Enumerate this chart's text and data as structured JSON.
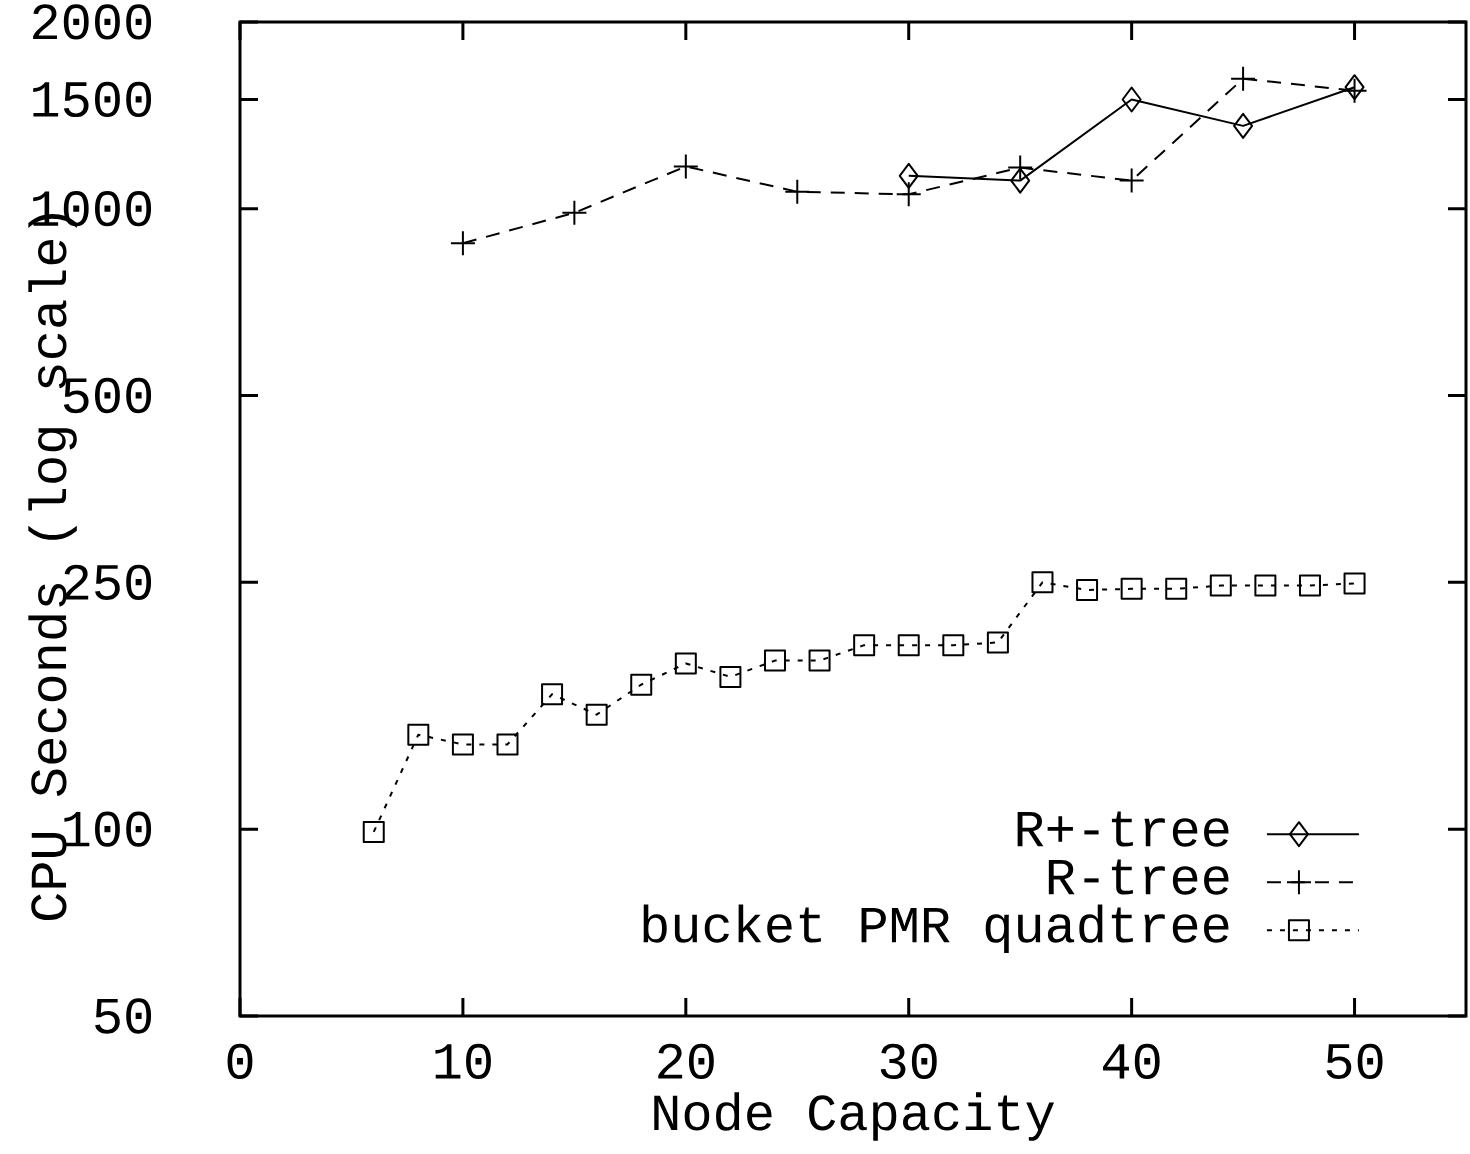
{
  "chart_data": {
    "type": "line",
    "xlabel": "Node Capacity",
    "ylabel": "CPU Seconds (log scale)",
    "xlim": [
      0,
      55
    ],
    "xticks": [
      0,
      10,
      20,
      30,
      40,
      50
    ],
    "ylim": [
      50,
      2000
    ],
    "yticks": [
      50,
      100,
      250,
      500,
      1000,
      1500,
      2000
    ],
    "log": "y",
    "legend": "bottom right",
    "series": [
      {
        "name": "R+-tree",
        "color": "#000000",
        "marker": "diamond",
        "line_style": "solid",
        "x": [
          30,
          35,
          40,
          45,
          50
        ],
        "values": [
          1130,
          1110,
          1500,
          1360,
          1570
        ]
      },
      {
        "name": "R-tree",
        "color": "#000000",
        "marker": "cross",
        "line_style": "dashed",
        "x": [
          10,
          15,
          20,
          25,
          30,
          35,
          40,
          45,
          50
        ],
        "values": [
          880,
          985,
          1170,
          1065,
          1055,
          1165,
          1110,
          1620,
          1550
        ]
      },
      {
        "name": "bucket PMR quadtree",
        "color": "#000000",
        "marker": "square",
        "line_style": "dotted",
        "x": [
          6,
          8,
          10,
          12,
          14,
          16,
          18,
          20,
          22,
          24,
          26,
          28,
          30,
          32,
          34,
          36,
          38,
          40,
          42,
          44,
          46,
          48,
          50
        ],
        "values": [
          99,
          142,
          137,
          137,
          165,
          153,
          171,
          185,
          176,
          187,
          187,
          198,
          198,
          198,
          200,
          250,
          243,
          244,
          244,
          247,
          247,
          247,
          249
        ]
      }
    ]
  }
}
